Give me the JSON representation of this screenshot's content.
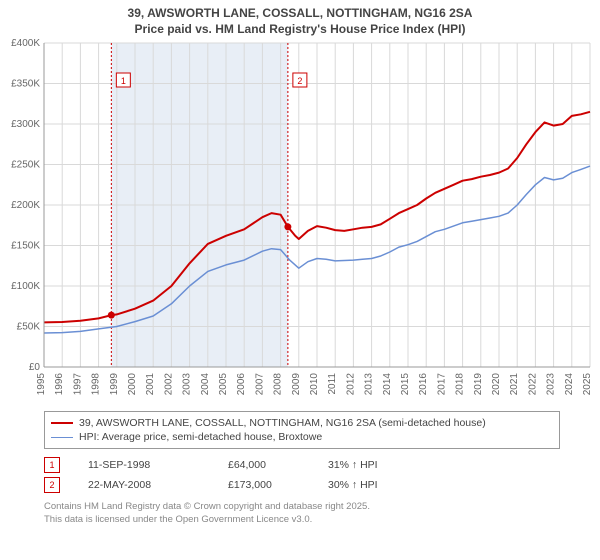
{
  "title_line1": "39, AWSWORTH LANE, COSSALL, NOTTINGHAM, NG16 2SA",
  "title_line2": "Price paid vs. HM Land Registry's House Price Index (HPI)",
  "chart": {
    "type": "line",
    "background_color": "#ffffff",
    "grid_color": "#d9d9d9",
    "shade_color": "#e8eef6",
    "axis_fontsize": 10,
    "axis_color": "#666666",
    "ylabel_prefix": "£",
    "xlim": [
      1995,
      2025
    ],
    "ylim": [
      0,
      400000
    ],
    "ytick_step": 50000,
    "yticks": [
      0,
      50000,
      100000,
      150000,
      200000,
      250000,
      300000,
      350000,
      400000
    ],
    "ytick_labels": [
      "£0",
      "£50K",
      "£100K",
      "£150K",
      "£200K",
      "£250K",
      "£300K",
      "£350K",
      "£400K"
    ],
    "xticks": [
      1995,
      1996,
      1997,
      1998,
      1999,
      2000,
      2001,
      2002,
      2003,
      2004,
      2005,
      2006,
      2007,
      2008,
      2009,
      2010,
      2011,
      2012,
      2013,
      2014,
      2015,
      2016,
      2017,
      2018,
      2019,
      2020,
      2021,
      2022,
      2023,
      2024,
      2025
    ],
    "shade_start": 1998.7,
    "shade_end": 2008.4,
    "series": [
      {
        "name": "price_paid",
        "label": "39, AWSWORTH LANE, COSSALL, NOTTINGHAM, NG16 2SA (semi-detached house)",
        "color": "#cc0000",
        "line_width": 2,
        "points": [
          [
            1995,
            55000
          ],
          [
            1996,
            55500
          ],
          [
            1997,
            57000
          ],
          [
            1998,
            60000
          ],
          [
            1998.7,
            64000
          ],
          [
            1999,
            65000
          ],
          [
            2000,
            72000
          ],
          [
            2001,
            82000
          ],
          [
            2002,
            100000
          ],
          [
            2003,
            128000
          ],
          [
            2004,
            152000
          ],
          [
            2005,
            162000
          ],
          [
            2006,
            170000
          ],
          [
            2007,
            185000
          ],
          [
            2007.5,
            190000
          ],
          [
            2008,
            188000
          ],
          [
            2008.4,
            173000
          ],
          [
            2008.8,
            162000
          ],
          [
            2009,
            158000
          ],
          [
            2009.5,
            168000
          ],
          [
            2010,
            174000
          ],
          [
            2010.5,
            172000
          ],
          [
            2011,
            169000
          ],
          [
            2011.5,
            168000
          ],
          [
            2012,
            170000
          ],
          [
            2012.5,
            172000
          ],
          [
            2013,
            173000
          ],
          [
            2013.5,
            176000
          ],
          [
            2014,
            183000
          ],
          [
            2014.5,
            190000
          ],
          [
            2015,
            195000
          ],
          [
            2015.5,
            200000
          ],
          [
            2016,
            208000
          ],
          [
            2016.5,
            215000
          ],
          [
            2017,
            220000
          ],
          [
            2017.5,
            225000
          ],
          [
            2018,
            230000
          ],
          [
            2018.5,
            232000
          ],
          [
            2019,
            235000
          ],
          [
            2019.5,
            237000
          ],
          [
            2020,
            240000
          ],
          [
            2020.5,
            245000
          ],
          [
            2021,
            258000
          ],
          [
            2021.5,
            275000
          ],
          [
            2022,
            290000
          ],
          [
            2022.5,
            302000
          ],
          [
            2023,
            298000
          ],
          [
            2023.5,
            300000
          ],
          [
            2024,
            310000
          ],
          [
            2024.5,
            312000
          ],
          [
            2025,
            315000
          ]
        ]
      },
      {
        "name": "hpi",
        "label": "HPI: Average price, semi-detached house, Broxtowe",
        "color": "#6a8fd4",
        "line_width": 1.5,
        "points": [
          [
            1995,
            42000
          ],
          [
            1996,
            42500
          ],
          [
            1997,
            44000
          ],
          [
            1998,
            47000
          ],
          [
            1999,
            50000
          ],
          [
            2000,
            56000
          ],
          [
            2001,
            63000
          ],
          [
            2002,
            78000
          ],
          [
            2003,
            100000
          ],
          [
            2004,
            118000
          ],
          [
            2005,
            126000
          ],
          [
            2006,
            132000
          ],
          [
            2007,
            143000
          ],
          [
            2007.5,
            146000
          ],
          [
            2008,
            145000
          ],
          [
            2008.5,
            132000
          ],
          [
            2009,
            122000
          ],
          [
            2009.5,
            130000
          ],
          [
            2010,
            134000
          ],
          [
            2010.5,
            133000
          ],
          [
            2011,
            131000
          ],
          [
            2012,
            132000
          ],
          [
            2012.5,
            133000
          ],
          [
            2013,
            134000
          ],
          [
            2013.5,
            137000
          ],
          [
            2014,
            142000
          ],
          [
            2014.5,
            148000
          ],
          [
            2015,
            151000
          ],
          [
            2015.5,
            155000
          ],
          [
            2016,
            161000
          ],
          [
            2016.5,
            167000
          ],
          [
            2017,
            170000
          ],
          [
            2017.5,
            174000
          ],
          [
            2018,
            178000
          ],
          [
            2018.5,
            180000
          ],
          [
            2019,
            182000
          ],
          [
            2019.5,
            184000
          ],
          [
            2020,
            186000
          ],
          [
            2020.5,
            190000
          ],
          [
            2021,
            200000
          ],
          [
            2021.5,
            213000
          ],
          [
            2022,
            225000
          ],
          [
            2022.5,
            234000
          ],
          [
            2023,
            231000
          ],
          [
            2023.5,
            233000
          ],
          [
            2024,
            240000
          ],
          [
            2024.5,
            244000
          ],
          [
            2025,
            248000
          ]
        ]
      }
    ],
    "markers": [
      {
        "label": "1",
        "x": 1998.7,
        "color": "#cc0000",
        "point_y": 64000
      },
      {
        "label": "2",
        "x": 2008.4,
        "color": "#cc0000",
        "point_y": 173000
      }
    ]
  },
  "legend": {
    "border_color": "#999999",
    "items": [
      {
        "color": "#cc0000",
        "width": 2,
        "text": "39, AWSWORTH LANE, COSSALL, NOTTINGHAM, NG16 2SA (semi-detached house)"
      },
      {
        "color": "#6a8fd4",
        "width": 1.5,
        "text": "HPI: Average price, semi-detached house, Broxtowe"
      }
    ]
  },
  "sales": [
    {
      "label": "1",
      "marker_color": "#cc0000",
      "date": "11-SEP-1998",
      "price": "£64,000",
      "pct": "31% ↑ HPI"
    },
    {
      "label": "2",
      "marker_color": "#cc0000",
      "date": "22-MAY-2008",
      "price": "£173,000",
      "pct": "30% ↑ HPI"
    }
  ],
  "footnote_line1": "Contains HM Land Registry data © Crown copyright and database right 2025.",
  "footnote_line2": "This data is licensed under the Open Government Licence v3.0."
}
